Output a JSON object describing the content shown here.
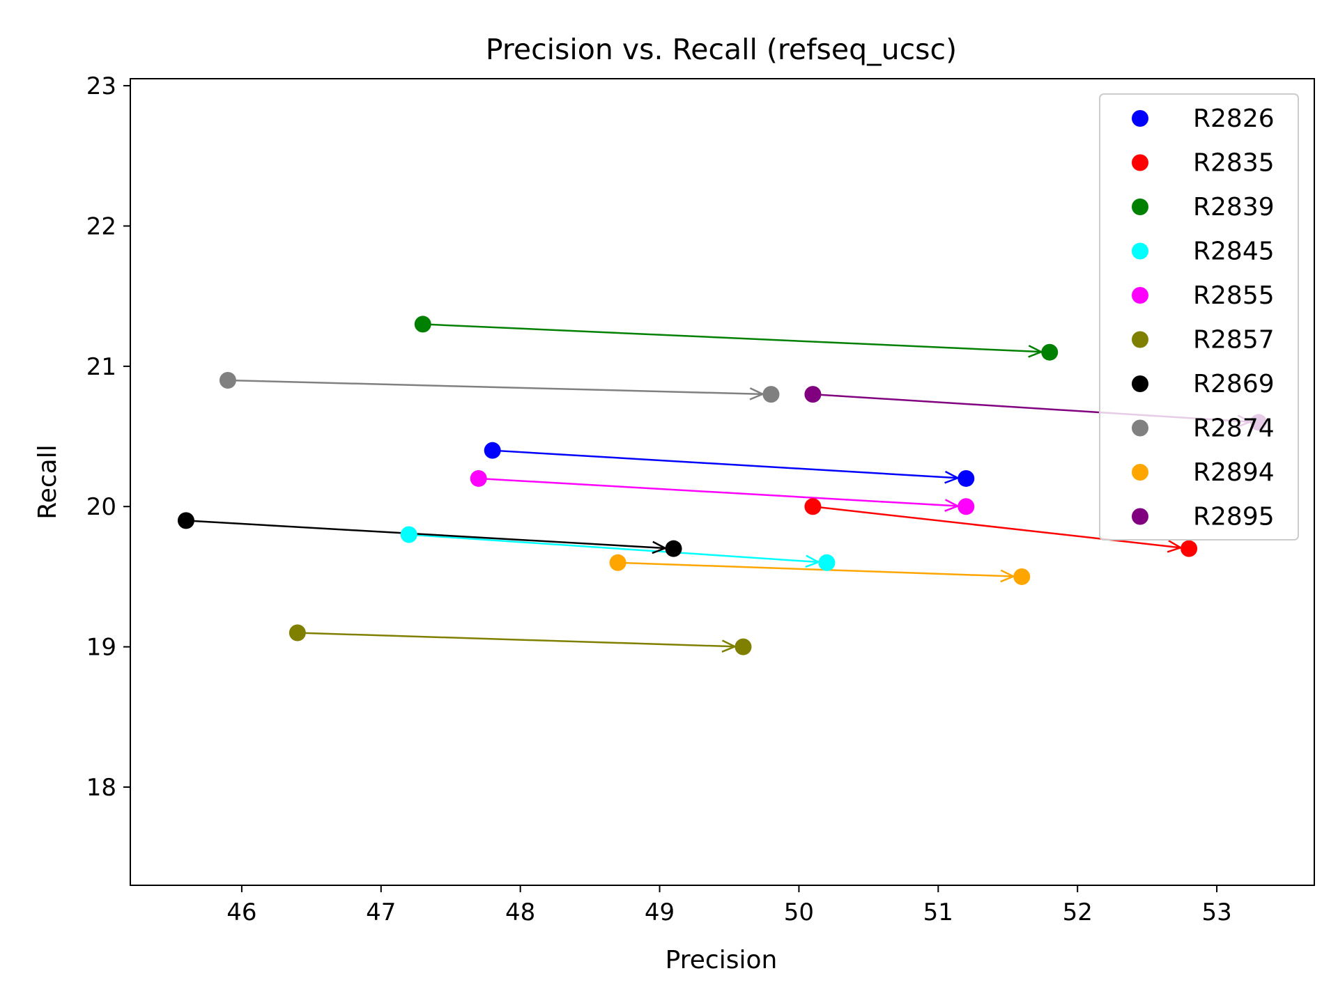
{
  "chart_data": {
    "type": "scatter",
    "title": "Precision vs. Recall (refseq_ucsc)",
    "xlabel": "Precision",
    "ylabel": "Recall",
    "xlim": [
      45.2,
      53.7
    ],
    "ylim": [
      17.3,
      23.05
    ],
    "xticks": [
      46,
      47,
      48,
      49,
      50,
      51,
      52,
      53
    ],
    "yticks": [
      18,
      19,
      20,
      21,
      22,
      23
    ],
    "grid": false,
    "legend_position": "top-right",
    "series": [
      {
        "name": "R2826",
        "color": "#0000ff",
        "points": [
          {
            "x": 47.8,
            "y": 20.4
          },
          {
            "x": 51.2,
            "y": 20.2
          }
        ]
      },
      {
        "name": "R2835",
        "color": "#ff0000",
        "points": [
          {
            "x": 50.1,
            "y": 20.0
          },
          {
            "x": 52.8,
            "y": 19.7
          }
        ]
      },
      {
        "name": "R2839",
        "color": "#008000",
        "points": [
          {
            "x": 47.3,
            "y": 21.3
          },
          {
            "x": 51.8,
            "y": 21.1
          }
        ]
      },
      {
        "name": "R2845",
        "color": "#00ffff",
        "points": [
          {
            "x": 47.2,
            "y": 19.8
          },
          {
            "x": 50.2,
            "y": 19.6
          }
        ]
      },
      {
        "name": "R2855",
        "color": "#ff00ff",
        "points": [
          {
            "x": 47.7,
            "y": 20.2
          },
          {
            "x": 51.2,
            "y": 20.0
          }
        ]
      },
      {
        "name": "R2857",
        "color": "#808000",
        "points": [
          {
            "x": 46.4,
            "y": 19.1
          },
          {
            "x": 49.6,
            "y": 19.0
          }
        ]
      },
      {
        "name": "R2869",
        "color": "#000000",
        "points": [
          {
            "x": 45.6,
            "y": 19.9
          },
          {
            "x": 49.1,
            "y": 19.7
          }
        ]
      },
      {
        "name": "R2874",
        "color": "#808080",
        "points": [
          {
            "x": 45.9,
            "y": 20.9
          },
          {
            "x": 49.8,
            "y": 20.8
          }
        ]
      },
      {
        "name": "R2894",
        "color": "#ffa500",
        "points": [
          {
            "x": 48.7,
            "y": 19.6
          },
          {
            "x": 51.6,
            "y": 19.5
          }
        ]
      },
      {
        "name": "R2895",
        "color": "#800080",
        "points": [
          {
            "x": 50.1,
            "y": 20.8
          },
          {
            "x": 53.3,
            "y": 20.6
          }
        ]
      }
    ]
  }
}
